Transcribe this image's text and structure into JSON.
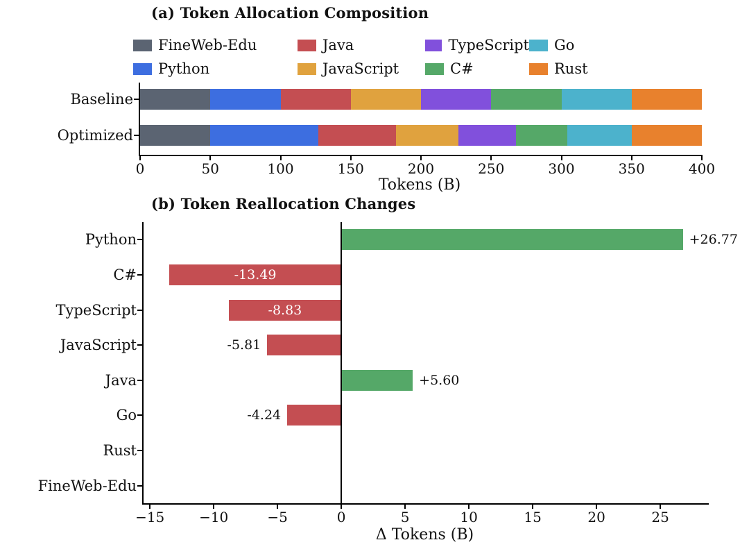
{
  "chart_data": [
    {
      "type": "bar",
      "stacked": true,
      "orientation": "horizontal",
      "title": "(a) Token Allocation Composition",
      "xlabel": "Tokens (B)",
      "xlim": [
        0,
        400
      ],
      "grid": false,
      "legend_position": "top",
      "legend_order": [
        "FineWeb-Edu",
        "Java",
        "TypeScript",
        "Go",
        "Python",
        "JavaScript",
        "C#",
        "Rust"
      ],
      "categories": [
        "Baseline",
        "Optimized"
      ],
      "series": [
        {
          "name": "FineWeb-Edu",
          "color": "#5b6472",
          "values": [
            50,
            50
          ]
        },
        {
          "name": "Python",
          "color": "#3d6ee0",
          "values": [
            50,
            76.77
          ]
        },
        {
          "name": "Java",
          "color": "#c44e52",
          "values": [
            50,
            55.6
          ]
        },
        {
          "name": "JavaScript",
          "color": "#e0a23e",
          "values": [
            50,
            44.19
          ]
        },
        {
          "name": "TypeScript",
          "color": "#8150dc",
          "values": [
            50,
            41.17
          ]
        },
        {
          "name": "C#",
          "color": "#55a868",
          "values": [
            50,
            36.51
          ]
        },
        {
          "name": "Go",
          "color": "#4cb2cc",
          "values": [
            50,
            45.76
          ]
        },
        {
          "name": "Rust",
          "color": "#e8812d",
          "values": [
            50,
            50
          ]
        }
      ],
      "xticks": [
        0,
        50,
        100,
        150,
        200,
        250,
        300,
        350,
        400
      ],
      "xtick_labels": [
        "0",
        "50",
        "100",
        "150",
        "200",
        "250",
        "300",
        "350",
        "400"
      ]
    },
    {
      "type": "bar",
      "orientation": "horizontal",
      "title": "(b) Token Reallocation Changes",
      "xlabel": "Δ Tokens (B)",
      "xlim": [
        -15.5,
        28.8
      ],
      "grid": false,
      "zero_line": true,
      "categories": [
        "Python",
        "C#",
        "TypeScript",
        "JavaScript",
        "Java",
        "Go",
        "Rust",
        "FineWeb-Edu"
      ],
      "values": [
        26.77,
        -13.49,
        -8.83,
        -5.81,
        5.6,
        -4.24,
        0,
        0
      ],
      "labels": [
        "+26.77",
        "-13.49",
        "-8.83",
        "-5.81",
        "+5.60",
        "-4.24",
        "",
        ""
      ],
      "label_inside": [
        false,
        true,
        true,
        false,
        false,
        false,
        false,
        false
      ],
      "positive_color": "#55a868",
      "negative_color": "#c44e52",
      "xticks": [
        -15,
        -10,
        -5,
        0,
        5,
        10,
        15,
        20,
        25
      ],
      "xtick_labels": [
        "−15",
        "−10",
        "−5",
        "0",
        "5",
        "10",
        "15",
        "20",
        "25"
      ]
    }
  ]
}
